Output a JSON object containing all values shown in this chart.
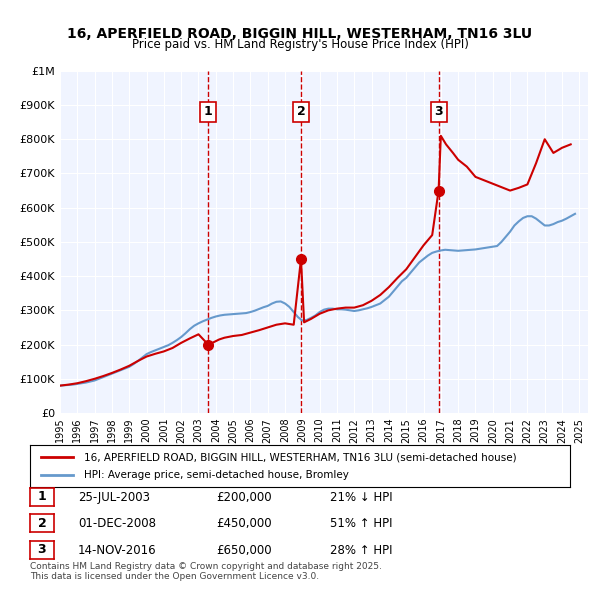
{
  "title": "16, APERFIELD ROAD, BIGGIN HILL, WESTERHAM, TN16 3LU",
  "subtitle": "Price paid vs. HM Land Registry's House Price Index (HPI)",
  "legend_property": "16, APERFIELD ROAD, BIGGIN HILL, WESTERHAM, TN16 3LU (semi-detached house)",
  "legend_hpi": "HPI: Average price, semi-detached house, Bromley",
  "footer": "Contains HM Land Registry data © Crown copyright and database right 2025.\nThis data is licensed under the Open Government Licence v3.0.",
  "property_color": "#cc0000",
  "hpi_color": "#6699cc",
  "background_color": "#f0f4ff",
  "xlim": [
    1995,
    2025.5
  ],
  "ylim": [
    0,
    1000000
  ],
  "yticks": [
    0,
    100000,
    200000,
    300000,
    400000,
    500000,
    600000,
    700000,
    800000,
    900000,
    1000000
  ],
  "ytick_labels": [
    "£0",
    "£100K",
    "£200K",
    "£300K",
    "£400K",
    "£500K",
    "£600K",
    "£700K",
    "£800K",
    "£900K",
    "£1M"
  ],
  "transactions": [
    {
      "num": 1,
      "date_label": "25-JUL-2003",
      "date_x": 2003.56,
      "price": 200000,
      "pct": "21%",
      "direction": "↓",
      "color": "#cc0000"
    },
    {
      "num": 2,
      "date_label": "01-DEC-2008",
      "date_x": 2008.92,
      "price": 450000,
      "pct": "51%",
      "direction": "↑",
      "color": "#cc0000"
    },
    {
      "num": 3,
      "date_label": "14-NOV-2016",
      "date_x": 2016.87,
      "price": 650000,
      "pct": "28%",
      "direction": "↑",
      "color": "#cc0000"
    }
  ],
  "hpi_data": {
    "x": [
      1995.0,
      1995.25,
      1995.5,
      1995.75,
      1996.0,
      1996.25,
      1996.5,
      1996.75,
      1997.0,
      1997.25,
      1997.5,
      1997.75,
      1998.0,
      1998.25,
      1998.5,
      1998.75,
      1999.0,
      1999.25,
      1999.5,
      1999.75,
      2000.0,
      2000.25,
      2000.5,
      2000.75,
      2001.0,
      2001.25,
      2001.5,
      2001.75,
      2002.0,
      2002.25,
      2002.5,
      2002.75,
      2003.0,
      2003.25,
      2003.5,
      2003.75,
      2004.0,
      2004.25,
      2004.5,
      2004.75,
      2005.0,
      2005.25,
      2005.5,
      2005.75,
      2006.0,
      2006.25,
      2006.5,
      2006.75,
      2007.0,
      2007.25,
      2007.5,
      2007.75,
      2008.0,
      2008.25,
      2008.5,
      2008.75,
      2009.0,
      2009.25,
      2009.5,
      2009.75,
      2010.0,
      2010.25,
      2010.5,
      2010.75,
      2011.0,
      2011.25,
      2011.5,
      2011.75,
      2012.0,
      2012.25,
      2012.5,
      2012.75,
      2013.0,
      2013.25,
      2013.5,
      2013.75,
      2014.0,
      2014.25,
      2014.5,
      2014.75,
      2015.0,
      2015.25,
      2015.5,
      2015.75,
      2016.0,
      2016.25,
      2016.5,
      2016.75,
      2017.0,
      2017.25,
      2017.5,
      2017.75,
      2018.0,
      2018.25,
      2018.5,
      2018.75,
      2019.0,
      2019.25,
      2019.5,
      2019.75,
      2020.0,
      2020.25,
      2020.5,
      2020.75,
      2021.0,
      2021.25,
      2021.5,
      2021.75,
      2022.0,
      2022.25,
      2022.5,
      2022.75,
      2023.0,
      2023.25,
      2023.5,
      2023.75,
      2024.0,
      2024.25,
      2024.5,
      2024.75
    ],
    "y": [
      80000,
      81000,
      82000,
      83000,
      85000,
      87000,
      89000,
      92000,
      95000,
      100000,
      105000,
      110000,
      115000,
      120000,
      125000,
      130000,
      135000,
      143000,
      152000,
      162000,
      172000,
      178000,
      183000,
      188000,
      193000,
      198000,
      205000,
      213000,
      222000,
      233000,
      245000,
      255000,
      262000,
      268000,
      273000,
      278000,
      282000,
      285000,
      287000,
      288000,
      289000,
      290000,
      291000,
      292000,
      295000,
      299000,
      304000,
      309000,
      313000,
      320000,
      325000,
      326000,
      320000,
      310000,
      295000,
      280000,
      270000,
      272000,
      278000,
      285000,
      295000,
      302000,
      305000,
      305000,
      303000,
      303000,
      302000,
      300000,
      298000,
      300000,
      303000,
      306000,
      310000,
      315000,
      320000,
      330000,
      340000,
      355000,
      370000,
      385000,
      395000,
      410000,
      425000,
      440000,
      450000,
      460000,
      468000,
      472000,
      475000,
      477000,
      476000,
      475000,
      474000,
      475000,
      476000,
      477000,
      478000,
      480000,
      482000,
      484000,
      486000,
      488000,
      500000,
      515000,
      530000,
      548000,
      560000,
      570000,
      575000,
      575000,
      568000,
      558000,
      548000,
      548000,
      552000,
      558000,
      562000,
      568000,
      575000,
      582000
    ]
  },
  "property_data": {
    "x": [
      1995.0,
      1995.5,
      1996.0,
      1996.5,
      1997.0,
      1997.5,
      1998.0,
      1998.5,
      1999.0,
      1999.5,
      2000.0,
      2000.5,
      2001.0,
      2001.5,
      2002.0,
      2002.5,
      2003.0,
      2003.56,
      2003.8,
      2004.2,
      2004.5,
      2005.0,
      2005.5,
      2006.0,
      2006.5,
      2007.0,
      2007.5,
      2008.0,
      2008.5,
      2008.92,
      2009.1,
      2009.5,
      2010.0,
      2010.5,
      2011.0,
      2011.5,
      2012.0,
      2012.5,
      2013.0,
      2013.5,
      2014.0,
      2014.5,
      2015.0,
      2015.5,
      2016.0,
      2016.5,
      2016.87,
      2017.0,
      2017.3,
      2017.7,
      2018.0,
      2018.5,
      2019.0,
      2019.5,
      2020.0,
      2020.5,
      2021.0,
      2021.5,
      2022.0,
      2022.5,
      2023.0,
      2023.5,
      2024.0,
      2024.5
    ],
    "y": [
      80000,
      83000,
      87000,
      93000,
      100000,
      108000,
      117000,
      127000,
      138000,
      152000,
      165000,
      173000,
      180000,
      190000,
      205000,
      218000,
      230000,
      200000,
      205000,
      215000,
      220000,
      225000,
      228000,
      235000,
      242000,
      250000,
      258000,
      262000,
      258000,
      450000,
      265000,
      275000,
      290000,
      300000,
      305000,
      308000,
      308000,
      315000,
      328000,
      345000,
      368000,
      395000,
      420000,
      455000,
      490000,
      520000,
      650000,
      810000,
      785000,
      760000,
      740000,
      720000,
      690000,
      680000,
      670000,
      660000,
      650000,
      658000,
      668000,
      730000,
      800000,
      760000,
      775000,
      785000
    ]
  }
}
